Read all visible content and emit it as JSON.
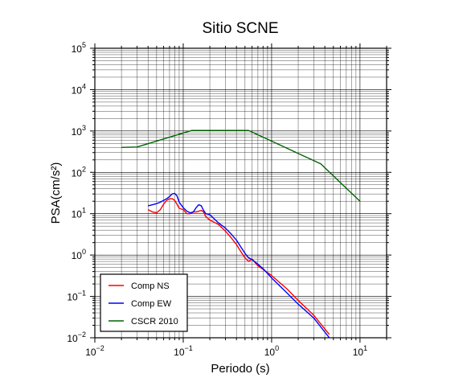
{
  "chart_data": {
    "type": "line",
    "title": "Sitio SCNE",
    "xlabel": "Periodo (s)",
    "ylabel": "PSA(cm/s²)",
    "x_scale": "log",
    "y_scale": "log",
    "xlim": [
      0.01,
      20
    ],
    "ylim": [
      0.01,
      100000
    ],
    "grid": true,
    "legend_placement": "bottom-left",
    "x_ticks": [
      {
        "base": "10",
        "exp": "−2",
        "value": 0.01
      },
      {
        "base": "10",
        "exp": "−1",
        "value": 0.1
      },
      {
        "base": "10",
        "exp": "0",
        "value": 1
      },
      {
        "base": "10",
        "exp": "1",
        "value": 10
      }
    ],
    "y_ticks": [
      {
        "base": "10",
        "exp": "−2",
        "value": 0.01
      },
      {
        "base": "10",
        "exp": "−1",
        "value": 0.1
      },
      {
        "base": "10",
        "exp": "0",
        "value": 1
      },
      {
        "base": "10",
        "exp": "1",
        "value": 10
      },
      {
        "base": "10",
        "exp": "2",
        "value": 100
      },
      {
        "base": "10",
        "exp": "3",
        "value": 1000
      },
      {
        "base": "10",
        "exp": "4",
        "value": 10000
      },
      {
        "base": "10",
        "exp": "5",
        "value": 100000
      }
    ],
    "series": [
      {
        "name": "Comp NS",
        "color": "#ff0000",
        "points": [
          [
            0.04,
            12.5
          ],
          [
            0.045,
            11
          ],
          [
            0.05,
            10.5
          ],
          [
            0.055,
            12.5
          ],
          [
            0.06,
            17
          ],
          [
            0.065,
            21
          ],
          [
            0.07,
            23
          ],
          [
            0.075,
            23
          ],
          [
            0.08,
            21
          ],
          [
            0.085,
            17
          ],
          [
            0.09,
            13.5
          ],
          [
            0.1,
            12.5
          ],
          [
            0.11,
            10
          ],
          [
            0.12,
            10
          ],
          [
            0.13,
            11
          ],
          [
            0.14,
            11
          ],
          [
            0.15,
            11.5
          ],
          [
            0.16,
            12
          ],
          [
            0.17,
            11
          ],
          [
            0.18,
            8.5
          ],
          [
            0.2,
            7
          ],
          [
            0.25,
            5.5
          ],
          [
            0.3,
            3.8
          ],
          [
            0.35,
            2.6
          ],
          [
            0.4,
            1.8
          ],
          [
            0.45,
            1.2
          ],
          [
            0.5,
            0.85
          ],
          [
            0.55,
            0.7
          ],
          [
            0.6,
            0.8
          ],
          [
            0.7,
            0.55
          ],
          [
            0.8,
            0.45
          ],
          [
            1,
            0.32
          ],
          [
            1.5,
            0.15
          ],
          [
            2,
            0.08
          ],
          [
            3,
            0.035
          ],
          [
            4.5,
            0.012
          ]
        ]
      },
      {
        "name": "Comp EW",
        "color": "#0000ff",
        "points": [
          [
            0.04,
            15.5
          ],
          [
            0.045,
            16.5
          ],
          [
            0.05,
            17.5
          ],
          [
            0.055,
            19
          ],
          [
            0.06,
            21
          ],
          [
            0.065,
            23
          ],
          [
            0.07,
            26
          ],
          [
            0.075,
            30
          ],
          [
            0.08,
            31
          ],
          [
            0.085,
            27
          ],
          [
            0.09,
            19
          ],
          [
            0.1,
            14
          ],
          [
            0.11,
            11.5
          ],
          [
            0.12,
            10.5
          ],
          [
            0.13,
            11
          ],
          [
            0.14,
            14
          ],
          [
            0.15,
            16.5
          ],
          [
            0.16,
            15.5
          ],
          [
            0.17,
            12
          ],
          [
            0.18,
            10
          ],
          [
            0.2,
            9.5
          ],
          [
            0.25,
            6
          ],
          [
            0.3,
            4.5
          ],
          [
            0.35,
            3.2
          ],
          [
            0.4,
            2.3
          ],
          [
            0.45,
            1.55
          ],
          [
            0.5,
            1.1
          ],
          [
            0.55,
            0.85
          ],
          [
            0.6,
            0.78
          ],
          [
            0.7,
            0.6
          ],
          [
            0.8,
            0.47
          ],
          [
            1,
            0.28
          ],
          [
            1.5,
            0.12
          ],
          [
            2,
            0.065
          ],
          [
            3,
            0.03
          ],
          [
            4.5,
            0.01
          ]
        ]
      },
      {
        "name": "CSCR 2010",
        "color": "#006400",
        "points": [
          [
            0.02,
            400
          ],
          [
            0.03,
            410
          ],
          [
            0.125,
            1030
          ],
          [
            0.55,
            1030
          ],
          [
            3.6,
            160
          ],
          [
            10,
            20
          ]
        ]
      }
    ]
  }
}
